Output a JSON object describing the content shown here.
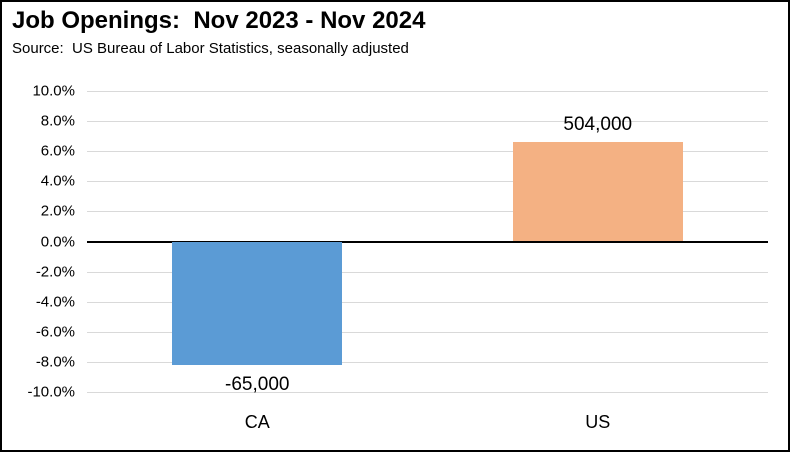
{
  "header": {
    "title": "Job Openings:  Nov 2023 - Nov 2024",
    "subtitle": "Source:  US Bureau of Labor Statistics, seasonally adjusted"
  },
  "chart_data": {
    "type": "bar",
    "title": "Job Openings:  Nov 2023 - Nov 2024",
    "source_note": "Source:  US Bureau of Labor Statistics, seasonally adjusted",
    "categories": [
      "CA",
      "US"
    ],
    "values": [
      -8.2,
      6.6
    ],
    "values_unit": "percent",
    "data_labels": [
      "-65,000",
      "504,000"
    ],
    "bar_colors": [
      "#5B9BD5",
      "#F4B183"
    ],
    "ylim": [
      -10,
      10
    ],
    "ytick_step": 2,
    "ytick_labels": [
      "10.0%",
      "8.0%",
      "6.0%",
      "4.0%",
      "2.0%",
      "0.0%",
      "-2.0%",
      "-4.0%",
      "-6.0%",
      "-8.0%",
      "-10.0%"
    ],
    "xlabel": "",
    "ylabel": "",
    "grid": true,
    "zero_line": true,
    "legend": false,
    "colors": {
      "gridline": "#d9d9d9",
      "zero_line": "#000000",
      "text": "#000000",
      "background": "#ffffff",
      "border": "#000000"
    }
  }
}
